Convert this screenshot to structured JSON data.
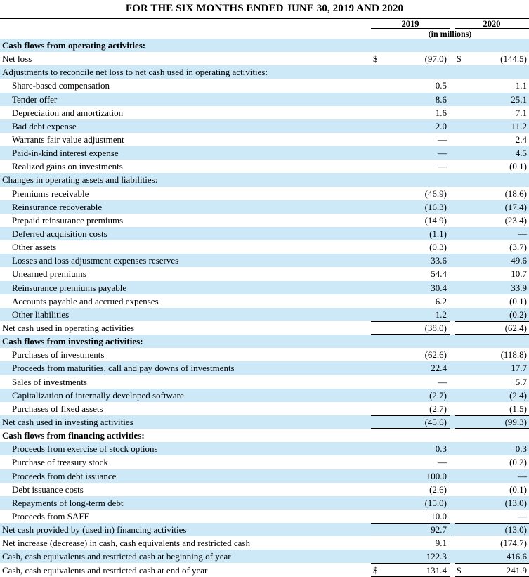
{
  "title": "FOR THE SIX MONTHS ENDED JUNE 30, 2019 AND 2020",
  "columns": {
    "year_2019": "2019",
    "year_2020": "2020",
    "units": "(in millions)"
  },
  "currency_symbol": "$",
  "dash": "—",
  "colors": {
    "row_highlight": "#CDE9F8",
    "rule_line": "#000000",
    "text": "#000000"
  },
  "table": {
    "rows": [
      {
        "label": "Cash flows from operating activities:",
        "v2019": "",
        "v2020": "",
        "bold": true,
        "indent": 0,
        "dollar": false,
        "rule_top": false,
        "rule_bottom": false
      },
      {
        "label": "Net loss",
        "v2019": "(97.0)",
        "v2020": "(144.5)",
        "bold": false,
        "indent": 0,
        "dollar": true,
        "rule_top": false,
        "rule_bottom": false
      },
      {
        "label": "Adjustments to reconcile net loss to net cash used in operating activities:",
        "v2019": "",
        "v2020": "",
        "bold": false,
        "indent": 0,
        "dollar": false,
        "rule_top": false,
        "rule_bottom": false
      },
      {
        "label": "Share-based compensation",
        "v2019": "0.5",
        "v2020": "1.1",
        "bold": false,
        "indent": 1,
        "dollar": false,
        "rule_top": false,
        "rule_bottom": false
      },
      {
        "label": "Tender offer",
        "v2019": "8.6",
        "v2020": "25.1",
        "bold": false,
        "indent": 1,
        "dollar": false,
        "rule_top": false,
        "rule_bottom": false
      },
      {
        "label": "Depreciation and amortization",
        "v2019": "1.6",
        "v2020": "7.1",
        "bold": false,
        "indent": 1,
        "dollar": false,
        "rule_top": false,
        "rule_bottom": false
      },
      {
        "label": "Bad debt expense",
        "v2019": "2.0",
        "v2020": "11.2",
        "bold": false,
        "indent": 1,
        "dollar": false,
        "rule_top": false,
        "rule_bottom": false
      },
      {
        "label": "Warrants fair value adjustment",
        "v2019": "—",
        "v2020": "2.4",
        "bold": false,
        "indent": 1,
        "dollar": false,
        "rule_top": false,
        "rule_bottom": false
      },
      {
        "label": "Paid-in-kind interest expense",
        "v2019": "—",
        "v2020": "4.5",
        "bold": false,
        "indent": 1,
        "dollar": false,
        "rule_top": false,
        "rule_bottom": false
      },
      {
        "label": "Realized gains on investments",
        "v2019": "—",
        "v2020": "(0.1)",
        "bold": false,
        "indent": 1,
        "dollar": false,
        "rule_top": false,
        "rule_bottom": false
      },
      {
        "label": "Changes in operating assets and liabilities:",
        "v2019": "",
        "v2020": "",
        "bold": false,
        "indent": 0,
        "dollar": false,
        "rule_top": false,
        "rule_bottom": false
      },
      {
        "label": "Premiums receivable",
        "v2019": "(46.9)",
        "v2020": "(18.6)",
        "bold": false,
        "indent": 1,
        "dollar": false,
        "rule_top": false,
        "rule_bottom": false
      },
      {
        "label": "Reinsurance recoverable",
        "v2019": "(16.3)",
        "v2020": "(17.4)",
        "bold": false,
        "indent": 1,
        "dollar": false,
        "rule_top": false,
        "rule_bottom": false
      },
      {
        "label": "Prepaid reinsurance premiums",
        "v2019": "(14.9)",
        "v2020": "(23.4)",
        "bold": false,
        "indent": 1,
        "dollar": false,
        "rule_top": false,
        "rule_bottom": false
      },
      {
        "label": "Deferred acquisition costs",
        "v2019": "(1.1)",
        "v2020": "—",
        "bold": false,
        "indent": 1,
        "dollar": false,
        "rule_top": false,
        "rule_bottom": false
      },
      {
        "label": "Other assets",
        "v2019": "(0.3)",
        "v2020": "(3.7)",
        "bold": false,
        "indent": 1,
        "dollar": false,
        "rule_top": false,
        "rule_bottom": false
      },
      {
        "label": "Losses and loss adjustment expenses reserves",
        "v2019": "33.6",
        "v2020": "49.6",
        "bold": false,
        "indent": 1,
        "dollar": false,
        "rule_top": false,
        "rule_bottom": false
      },
      {
        "label": "Unearned premiums",
        "v2019": "54.4",
        "v2020": "10.7",
        "bold": false,
        "indent": 1,
        "dollar": false,
        "rule_top": false,
        "rule_bottom": false
      },
      {
        "label": "Reinsurance premiums payable",
        "v2019": "30.4",
        "v2020": "33.9",
        "bold": false,
        "indent": 1,
        "dollar": false,
        "rule_top": false,
        "rule_bottom": false
      },
      {
        "label": "Accounts payable and accrued expenses",
        "v2019": "6.2",
        "v2020": "(0.1)",
        "bold": false,
        "indent": 1,
        "dollar": false,
        "rule_top": false,
        "rule_bottom": false
      },
      {
        "label": "Other liabilities",
        "v2019": "1.2",
        "v2020": "(0.2)",
        "bold": false,
        "indent": 1,
        "dollar": false,
        "rule_top": false,
        "rule_bottom": false
      },
      {
        "label": "Net cash used in operating activities",
        "v2019": "(38.0)",
        "v2020": "(62.4)",
        "bold": false,
        "indent": 0,
        "dollar": false,
        "rule_top": true,
        "rule_bottom": true
      },
      {
        "label": "Cash flows from investing activities:",
        "v2019": "",
        "v2020": "",
        "bold": true,
        "indent": 0,
        "dollar": false,
        "rule_top": false,
        "rule_bottom": false
      },
      {
        "label": "Purchases of investments",
        "v2019": "(62.6)",
        "v2020": "(118.8)",
        "bold": false,
        "indent": 1,
        "dollar": false,
        "rule_top": false,
        "rule_bottom": false
      },
      {
        "label": "Proceeds from maturities, call and pay downs of investments",
        "v2019": "22.4",
        "v2020": "17.7",
        "bold": false,
        "indent": 1,
        "dollar": false,
        "rule_top": false,
        "rule_bottom": false
      },
      {
        "label": "Sales of investments",
        "v2019": "—",
        "v2020": "5.7",
        "bold": false,
        "indent": 1,
        "dollar": false,
        "rule_top": false,
        "rule_bottom": false
      },
      {
        "label": "Capitalization of internally developed software",
        "v2019": "(2.7)",
        "v2020": "(2.4)",
        "bold": false,
        "indent": 1,
        "dollar": false,
        "rule_top": false,
        "rule_bottom": false
      },
      {
        "label": "Purchases of fixed assets",
        "v2019": "(2.7)",
        "v2020": "(1.5)",
        "bold": false,
        "indent": 1,
        "dollar": false,
        "rule_top": false,
        "rule_bottom": false
      },
      {
        "label": "Net cash used in investing activities",
        "v2019": "(45.6)",
        "v2020": "(99.3)",
        "bold": false,
        "indent": 0,
        "dollar": false,
        "rule_top": true,
        "rule_bottom": true
      },
      {
        "label": "Cash flows from financing activities:",
        "v2019": "",
        "v2020": "",
        "bold": true,
        "indent": 0,
        "dollar": false,
        "rule_top": false,
        "rule_bottom": false
      },
      {
        "label": "Proceeds from exercise of stock options",
        "v2019": "0.3",
        "v2020": "0.3",
        "bold": false,
        "indent": 1,
        "dollar": false,
        "rule_top": false,
        "rule_bottom": false
      },
      {
        "label": "Purchase of treasury stock",
        "v2019": "—",
        "v2020": "(0.2)",
        "bold": false,
        "indent": 1,
        "dollar": false,
        "rule_top": false,
        "rule_bottom": false
      },
      {
        "label": "Proceeds from debt issuance",
        "v2019": "100.0",
        "v2020": "—",
        "bold": false,
        "indent": 1,
        "dollar": false,
        "rule_top": false,
        "rule_bottom": false
      },
      {
        "label": "Debt issuance costs",
        "v2019": "(2.6)",
        "v2020": "(0.1)",
        "bold": false,
        "indent": 1,
        "dollar": false,
        "rule_top": false,
        "rule_bottom": false
      },
      {
        "label": "Repayments of long-term debt",
        "v2019": "(15.0)",
        "v2020": "(13.0)",
        "bold": false,
        "indent": 1,
        "dollar": false,
        "rule_top": false,
        "rule_bottom": false
      },
      {
        "label": "Proceeds from SAFE",
        "v2019": "10.0",
        "v2020": "—",
        "bold": false,
        "indent": 1,
        "dollar": false,
        "rule_top": false,
        "rule_bottom": false
      },
      {
        "label": "Net cash provided by (used in) financing activities",
        "v2019": "92.7",
        "v2020": "(13.0)",
        "bold": false,
        "indent": 0,
        "dollar": false,
        "rule_top": true,
        "rule_bottom": true
      },
      {
        "label": "Net increase (decrease) in cash, cash equivalents and restricted cash",
        "v2019": "9.1",
        "v2020": "(174.7)",
        "bold": false,
        "indent": 0,
        "dollar": false,
        "rule_top": false,
        "rule_bottom": false
      },
      {
        "label": "Cash, cash equivalents and restricted cash at beginning of year",
        "v2019": "122.3",
        "v2020": "416.6",
        "bold": false,
        "indent": 0,
        "dollar": false,
        "rule_top": false,
        "rule_bottom": false
      },
      {
        "label": "Cash, cash equivalents and restricted cash at end of year",
        "v2019": "131.4",
        "v2020": "241.9",
        "bold": false,
        "indent": 0,
        "dollar": true,
        "rule_top": true,
        "rule_bottom": true
      }
    ]
  }
}
